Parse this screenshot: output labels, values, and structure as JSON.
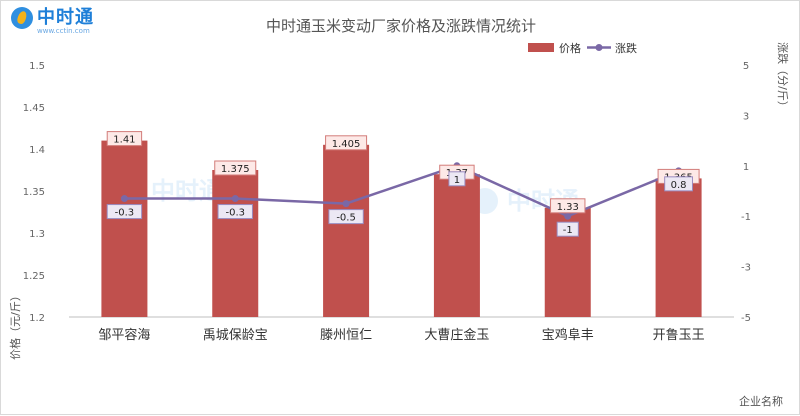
{
  "brand": {
    "name": "中时通",
    "url": "www.cctin.com"
  },
  "chart_data": {
    "type": "bar",
    "title": "中时通玉米变动厂家价格及涨跌情况统计",
    "categories": [
      "邹平容海",
      "禹城保龄宝",
      "滕州恒仁",
      "大曹庄金玉",
      "宝鸡阜丰",
      "开鲁玉王"
    ],
    "series": [
      {
        "name": "价格",
        "type": "bar",
        "axis": "left",
        "values": [
          1.41,
          1.375,
          1.405,
          1.37,
          1.33,
          1.365
        ],
        "labels": [
          "1.41",
          "1.375",
          "1.405",
          "1.37",
          "1.33",
          "1.365"
        ],
        "color": "#c0504d"
      },
      {
        "name": "涨跌",
        "type": "line",
        "axis": "right",
        "values": [
          -0.3,
          -0.3,
          -0.5,
          1,
          -1,
          0.8
        ],
        "labels": [
          "-0.3",
          "-0.3",
          "-0.5",
          "1",
          "-1",
          "0.8"
        ],
        "color": "#7a68a6"
      }
    ],
    "ylabel_left": "价格（元/斤）",
    "ylabel_right": "涨跌（分/斤）",
    "xlabel": "企业名称",
    "ylim_left": [
      1.2,
      1.5
    ],
    "yticks_left": [
      "1.2",
      "1.25",
      "1.3",
      "1.35",
      "1.4",
      "1.45",
      "1.5"
    ],
    "ylim_right": [
      -5,
      5
    ],
    "yticks_right": [
      "-5",
      "-3",
      "-1",
      "1",
      "3",
      "5"
    ],
    "legend_position": "top-right",
    "grid": false
  },
  "colors": {
    "bar": "#c0504d",
    "line": "#7a68a6",
    "bar_label_bg": "#fde9e7",
    "line_label_bg": "#ece8f4"
  }
}
